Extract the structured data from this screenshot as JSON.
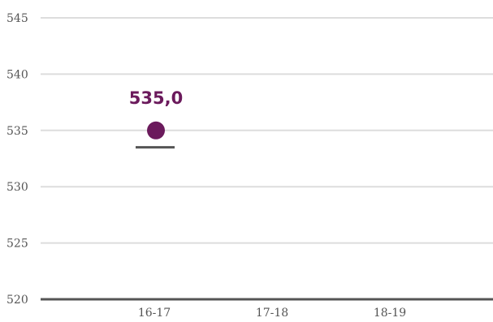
{
  "chart_data": {
    "type": "scatter",
    "title": "",
    "xlabel": "",
    "ylabel": "",
    "categories": [
      "16-17",
      "17-18",
      "18-19"
    ],
    "values": [
      535.0,
      null,
      null
    ],
    "data_labels": [
      "535,0",
      "",
      ""
    ],
    "reference_marks": [
      533.5,
      null,
      null
    ],
    "ylim": [
      520,
      545
    ],
    "yticks": [
      520,
      525,
      530,
      535,
      540,
      545
    ],
    "ytick_labels": [
      "520",
      "525",
      "530",
      "535",
      "540",
      "545"
    ],
    "grid": true,
    "legend": "none",
    "colors": {
      "point": "#6b1a5c",
      "reference_mark": "#555555",
      "grid": "#dddddd",
      "baseline": "#555555",
      "tick_text": "#555555"
    }
  }
}
